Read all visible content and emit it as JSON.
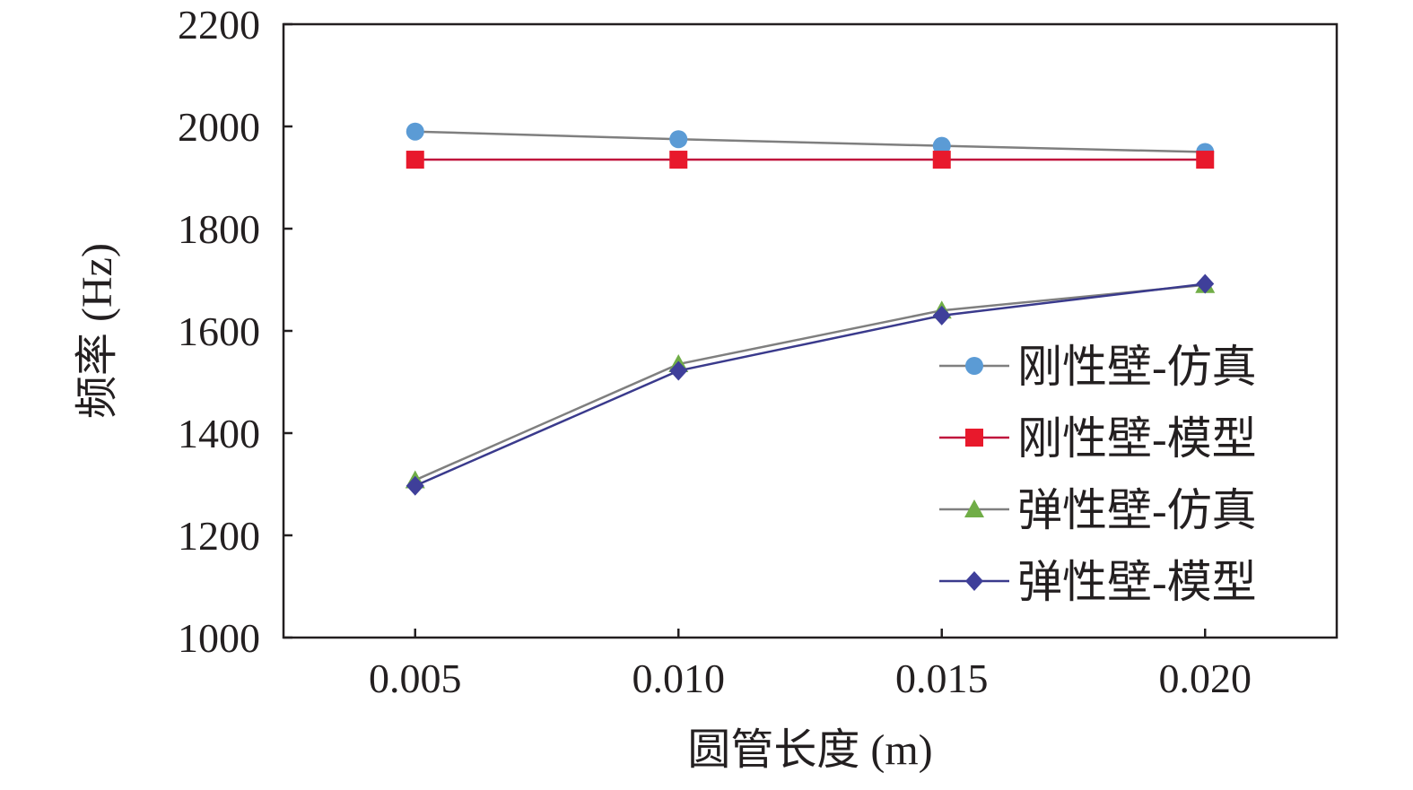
{
  "chart_data": {
    "type": "line",
    "title": "",
    "xlabel": "圆管长度 (m)",
    "ylabel": "频率 (Hz)",
    "x": [
      0.005,
      0.01,
      0.015,
      0.02
    ],
    "x_tick_labels": [
      "0.005",
      "0.010",
      "0.015",
      "0.020"
    ],
    "xlim": [
      0.0025,
      0.0225
    ],
    "ylim": [
      1000,
      2200
    ],
    "y_ticks": [
      1000,
      1200,
      1400,
      1600,
      1800,
      2000,
      2200
    ],
    "y_tick_labels": [
      "1000",
      "1200",
      "1400",
      "1600",
      "1800",
      "2000",
      "2200"
    ],
    "grid": false,
    "legend_position": "right",
    "series": [
      {
        "name": "刚性壁-仿真",
        "values": [
          1990,
          1975,
          1962,
          1950
        ],
        "marker": "circle",
        "line_color": "#7f7f7f",
        "marker_color": "#5b9bd5"
      },
      {
        "name": "刚性壁-模型",
        "values": [
          1935,
          1935,
          1935,
          1935
        ],
        "marker": "square",
        "line_color": "#c0143c",
        "marker_color": "#e8192c"
      },
      {
        "name": "弹性壁-仿真",
        "values": [
          1308,
          1535,
          1640,
          1690
        ],
        "marker": "triangle",
        "line_color": "#7f7f7f",
        "marker_color": "#70ad47"
      },
      {
        "name": "弹性壁-模型",
        "values": [
          1297,
          1522,
          1630,
          1692
        ],
        "marker": "diamond",
        "line_color": "#3a3a8c",
        "marker_color": "#3f3f9a"
      }
    ]
  }
}
